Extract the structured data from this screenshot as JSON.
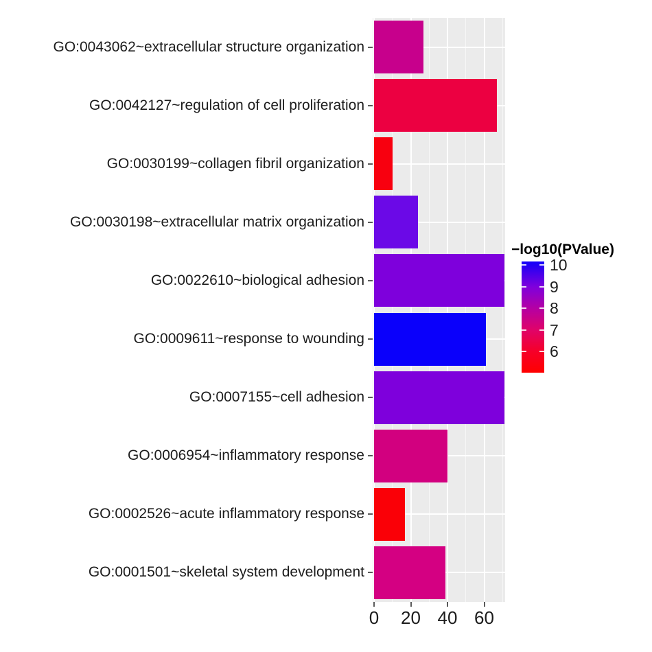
{
  "chart_data": {
    "type": "bar",
    "orientation": "horizontal",
    "categories": [
      "GO:0043062~extracellular structure organization",
      "GO:0042127~regulation of cell proliferation",
      "GO:0030199~collagen fibril organization",
      "GO:0030198~extracellular matrix organization",
      "GO:0022610~biological adhesion",
      "GO:0009611~response to wounding",
      "GO:0007155~cell adhesion",
      "GO:0006954~inflammatory response",
      "GO:0002526~acute inflammatory response",
      "GO:0001501~skeletal system development"
    ],
    "values": [
      27,
      67,
      10,
      24,
      71,
      61,
      71,
      40,
      17,
      39
    ],
    "neg_log10_pvalue": [
      7.6,
      6.3,
      5.4,
      9.3,
      9.1,
      10.2,
      9.1,
      7.3,
      5.3,
      7.4
    ],
    "bar_colors": [
      "#C7008C",
      "#EC0041",
      "#F8000F",
      "#6B09E7",
      "#7E00DC",
      "#0A00FB",
      "#7E00DC",
      "#D2007F",
      "#FA0007",
      "#D40082"
    ],
    "xlabel": "",
    "ylabel": "",
    "x_ticks": [
      0,
      20,
      40,
      60
    ],
    "x_minor_ticks": [
      10,
      30,
      50,
      70
    ],
    "xlim": [
      0,
      71.5
    ],
    "grid": true,
    "panel_background": "#EBEBEB",
    "gridline_color": "#FFFFFF",
    "legend": {
      "title": "−log10(PValue)",
      "type": "colorbar",
      "position": "right",
      "ticks": [
        10,
        9,
        8,
        7,
        6
      ],
      "limits": [
        5.0,
        10.2
      ],
      "high_color": "#0000FF",
      "low_color": "#FF0000",
      "gradient_stops": [
        {
          "pos": 0,
          "color": "#1400FB"
        },
        {
          "pos": 3.7,
          "color": "#2400F4"
        },
        {
          "pos": 22.8,
          "color": "#7F00DC"
        },
        {
          "pos": 42.6,
          "color": "#B600A2"
        },
        {
          "pos": 61.7,
          "color": "#E00368"
        },
        {
          "pos": 81.2,
          "color": "#F60028"
        },
        {
          "pos": 100,
          "color": "#FF0000"
        }
      ]
    }
  }
}
